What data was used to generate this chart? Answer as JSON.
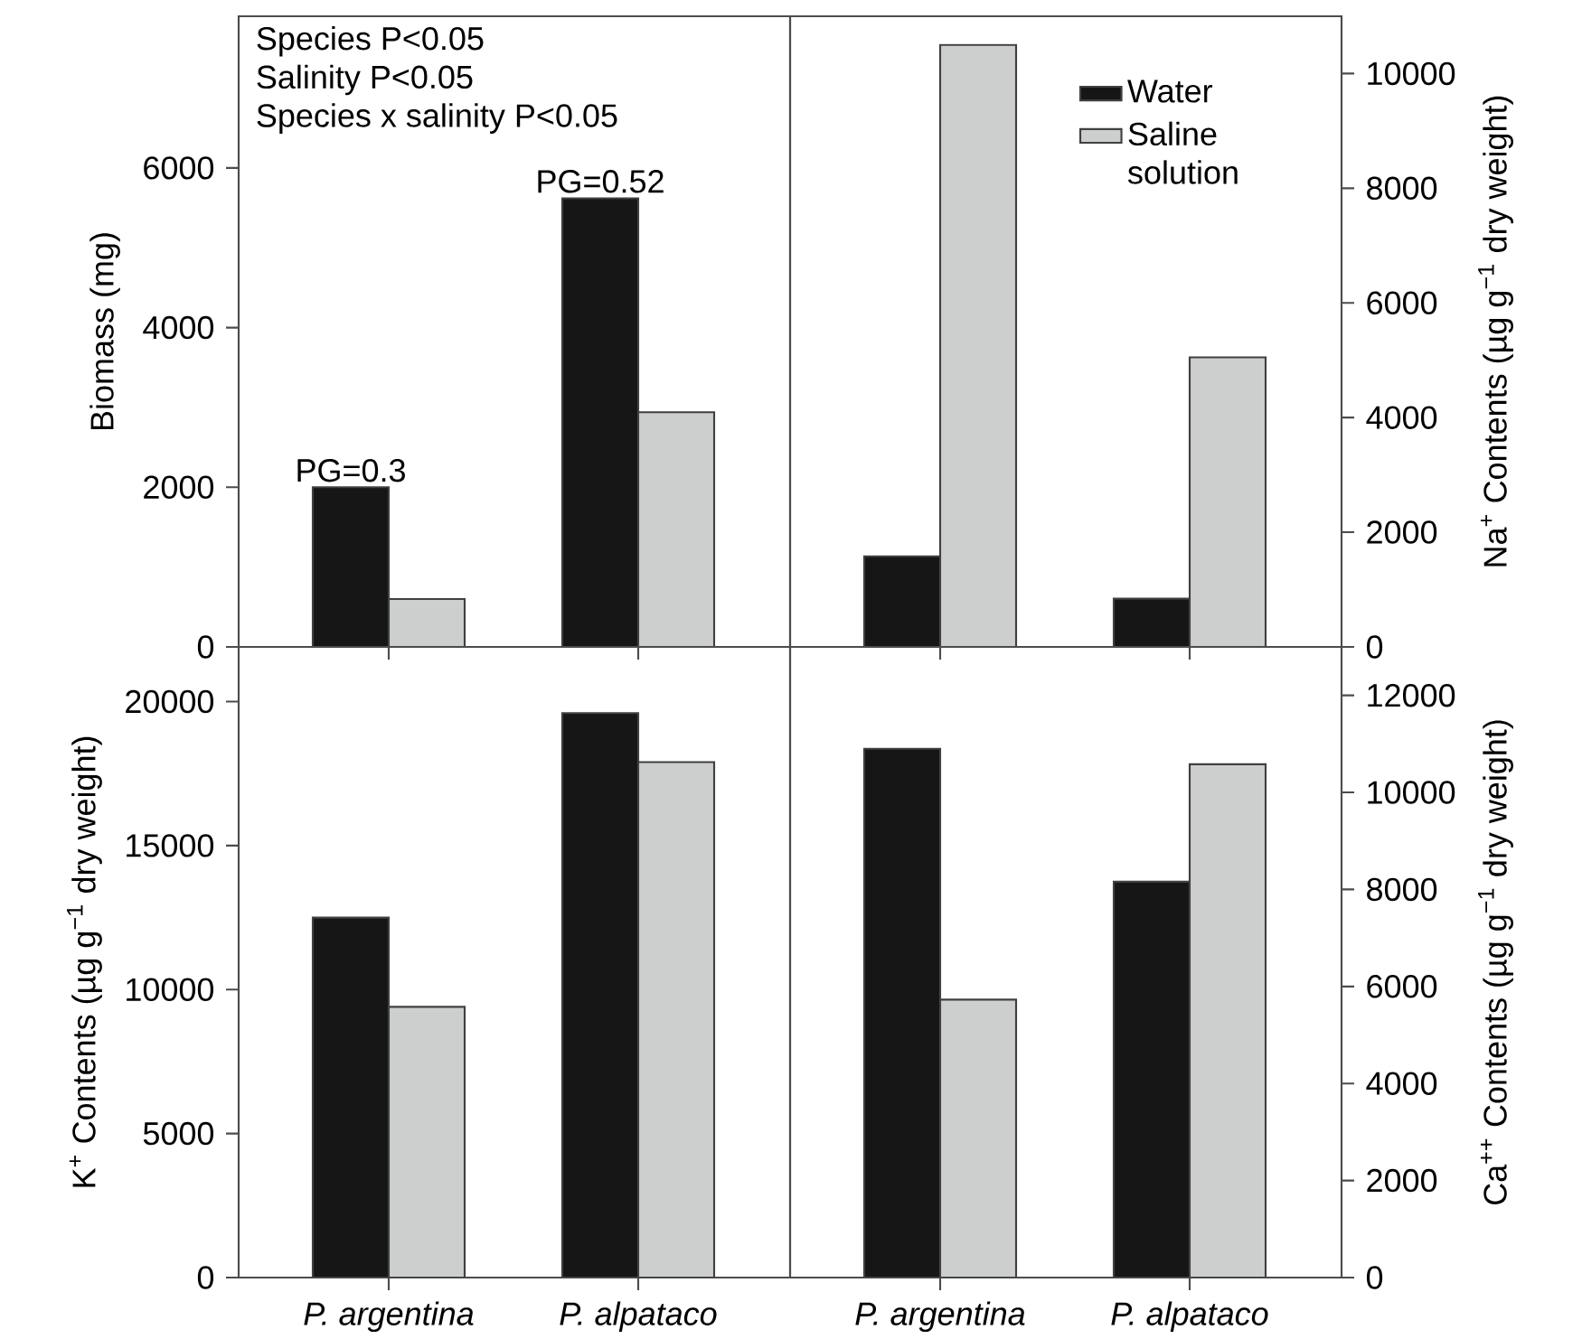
{
  "chart_data": [
    {
      "type": "bar",
      "categories": [
        "P. argentina",
        "P. alpataco"
      ],
      "ylabel": "Biomass (mg)",
      "ylim": [
        0,
        7900
      ],
      "yticks": [
        0,
        2000,
        4000,
        6000
      ],
      "tick_labels": "y",
      "annotations": [
        "Species P<0.05",
        "Salinity P<0.05",
        "Species x salinity P<0.05",
        {
          "text": "PG=0.3",
          "x": "P. argentina",
          "y": 2000
        },
        {
          "text": "PG=0.52",
          "x": "P. alpataco",
          "y": 5620
        }
      ],
      "series": [
        {
          "color": "#161616",
          "values": [
            2000,
            5620
          ]
        },
        {
          "color": "#cdcfce",
          "values": [
            600,
            2940
          ]
        }
      ]
    },
    {
      "type": "bar",
      "categories": [
        "P. argentina",
        "P. alpataco"
      ],
      "y2label": "Na$^{+}$ Contents (µg g$^{−1}$ dry weight)",
      "y2lim": [
        0,
        11000
      ],
      "y2ticks": [
        0,
        2000,
        4000,
        6000,
        8000,
        10000
      ],
      "tick_labels": "y",
      "legend": "top right",
      "series": [
        {
          "name": "Water",
          "color": "#161616",
          "axis": "y2",
          "values": [
            1580,
            840
          ]
        },
        {
          "name": "Saline solution",
          "color": "#cdcfce",
          "axis": "y2",
          "values": [
            10500,
            5050
          ]
        }
      ]
    },
    {
      "type": "bar",
      "categories": [
        "P. argentina",
        "P. alpataco"
      ],
      "ylabel": "K$^{+}$ Contents (µg g$^{−1}$ dry weight)",
      "ylim": [
        0,
        21900
      ],
      "yticks": [
        0,
        5000,
        10000,
        15000,
        20000
      ],
      "series": [
        {
          "color": "#161616",
          "values": [
            12500,
            19600
          ]
        },
        {
          "color": "#cdcfce",
          "values": [
            9400,
            17900
          ]
        }
      ]
    },
    {
      "type": "bar",
      "categories": [
        "P. argentina",
        "P. alpataco"
      ],
      "y2label": "Ca$^{++}$ Contents (µg g$^{−1}$ dry weight)",
      "y2lim": [
        0,
        13000
      ],
      "y2ticks": [
        0,
        2000,
        4000,
        6000,
        8000,
        10000,
        12000
      ],
      "series": [
        {
          "color": "#161616",
          "axis": "y2",
          "values": [
            10900,
            8160
          ]
        },
        {
          "color": "#cdcfce",
          "axis": "y2",
          "values": [
            5730,
            10580
          ]
        }
      ]
    }
  ]
}
